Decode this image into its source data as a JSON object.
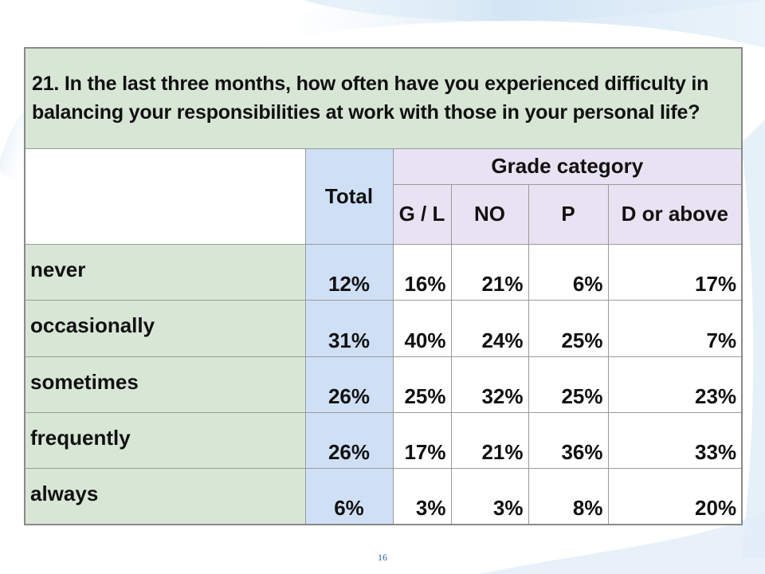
{
  "question": "21. In the last three months, how often have you experienced difficulty in balancing your responsibilities at work with those in your personal life?",
  "total_header": "Total",
  "group_header": "Grade category",
  "grade_columns": [
    "G / L",
    "NO",
    "P",
    "D or above"
  ],
  "rows": [
    {
      "label": "never",
      "total": "12%",
      "values": [
        "16%",
        "21%",
        "6%",
        "17%"
      ]
    },
    {
      "label": "occasionally",
      "total": "31%",
      "values": [
        "40%",
        "24%",
        "25%",
        "7%"
      ]
    },
    {
      "label": "sometimes",
      "total": "26%",
      "values": [
        "25%",
        "32%",
        "25%",
        "23%"
      ]
    },
    {
      "label": "frequently",
      "total": "26%",
      "values": [
        "17%",
        "21%",
        "36%",
        "33%"
      ]
    },
    {
      "label": "always",
      "total": "6%",
      "values": [
        "3%",
        "3%",
        "8%",
        "20%"
      ]
    }
  ],
  "page_number": "16",
  "colors": {
    "question_bg": "#d8e6d6",
    "total_bg": "#cfe0f6",
    "grade_bg": "#e8e2f2",
    "swoosh": "#cfe3f3"
  }
}
